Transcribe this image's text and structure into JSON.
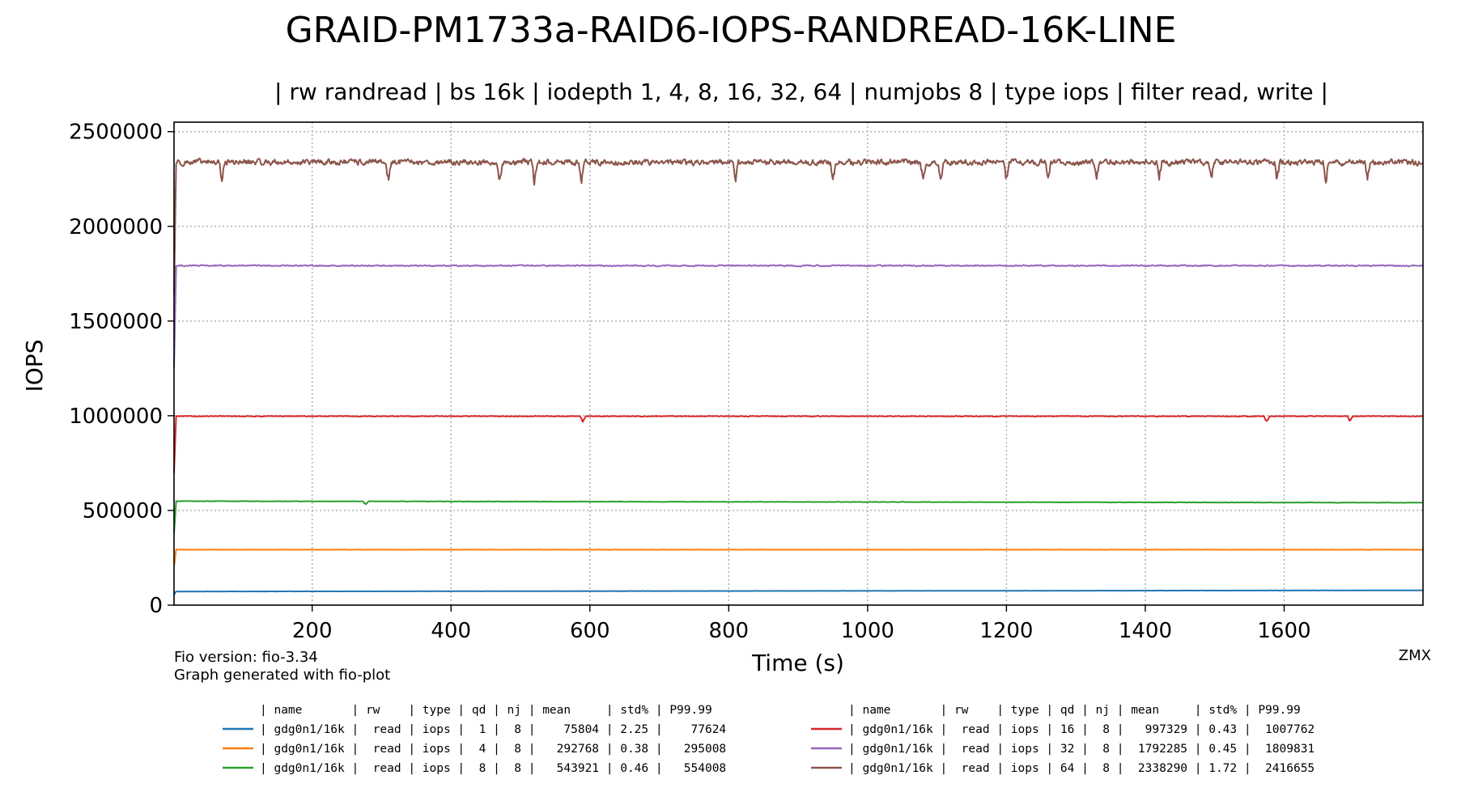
{
  "chart_data": {
    "type": "line",
    "title": "GRAID-PM1733a-RAID6-IOPS-RANDREAD-16K-LINE",
    "subtitle": "| rw randread | bs 16k | iodepth 1, 4, 8, 16, 32, 64 | numjobs 8 | type iops | filter read, write |",
    "xlabel": "Time (s)",
    "ylabel": "IOPS",
    "xlim": [
      1,
      1800
    ],
    "ylim": [
      0,
      2550000
    ],
    "xticks": [
      200,
      400,
      600,
      800,
      1000,
      1200,
      1400,
      1600
    ],
    "xtick_labels": [
      "200",
      "400",
      "600",
      "800",
      "1000",
      "1200",
      "1400",
      "1600"
    ],
    "yticks": [
      0,
      500000,
      1000000,
      1500000,
      2000000,
      2500000
    ],
    "ytick_labels": [
      "0",
      "500000",
      "1000000",
      "1500000",
      "2000000",
      "2500000"
    ],
    "grid": true,
    "legend_header": "| name       | rw    | type | qd | nj | mean     | std% | P99.99",
    "series": [
      {
        "color": "#1f77b4",
        "legend": "| gdg0n1/16k |  read | iops |  1 |  8 |    75804 | 2.25 |    77624",
        "mean": 75804,
        "std_pct": 2.25,
        "p9999": 77624,
        "start": 72000,
        "end": 78000,
        "noise": 600,
        "dip_depth": 0,
        "dips": []
      },
      {
        "color": "#ff7f0e",
        "legend": "| gdg0n1/16k |  read | iops |  4 |  8 |   292768 | 0.38 |   295008",
        "mean": 292768,
        "std_pct": 0.38,
        "p9999": 295008,
        "start": 292768,
        "end": 292768,
        "noise": 1000,
        "dip_depth": 0,
        "dips": []
      },
      {
        "color": "#2ca02c",
        "legend": "| gdg0n1/16k |  read | iops |  8 |  8 |   543921 | 0.46 |   554008",
        "mean": 543921,
        "std_pct": 0.46,
        "p9999": 554008,
        "start": 549000,
        "end": 541000,
        "noise": 1600,
        "dip_depth": 20000,
        "dips": [
          277
        ]
      },
      {
        "color": "#d62728",
        "legend": "| gdg0n1/16k |  read | iops | 16 |  8 |   997329 | 0.43 |  1007762",
        "mean": 997329,
        "std_pct": 0.43,
        "p9999": 1007762,
        "start": 997329,
        "end": 997329,
        "noise": 2600,
        "dip_depth": 35000,
        "dips": [
          590,
          1575,
          1695
        ]
      },
      {
        "color": "#9467bd",
        "legend": "| gdg0n1/16k |  read | iops | 32 |  8 |  1792285 | 0.45 |  1809831",
        "mean": 1792285,
        "std_pct": 0.45,
        "p9999": 1809831,
        "start": 1792285,
        "end": 1792285,
        "noise": 5000,
        "dip_depth": 0,
        "dips": []
      },
      {
        "color": "#8c564b",
        "legend": "| gdg0n1/16k |  read | iops | 64 |  8 |  2338290 | 1.72 |  2416655",
        "mean": 2338290,
        "std_pct": 1.72,
        "p9999": 2416655,
        "start": 2338290,
        "end": 2338290,
        "noise": 24000,
        "dip_depth": 120000,
        "dips": [
          70,
          310,
          470,
          520,
          588,
          810,
          950,
          1080,
          1105,
          1200,
          1260,
          1330,
          1420,
          1495,
          1590,
          1660,
          1720
        ]
      }
    ]
  },
  "footer": {
    "fio_version": "Fio version: fio-3.34",
    "generated": "Graph generated with fio-plot",
    "watermark": "ZMX"
  }
}
